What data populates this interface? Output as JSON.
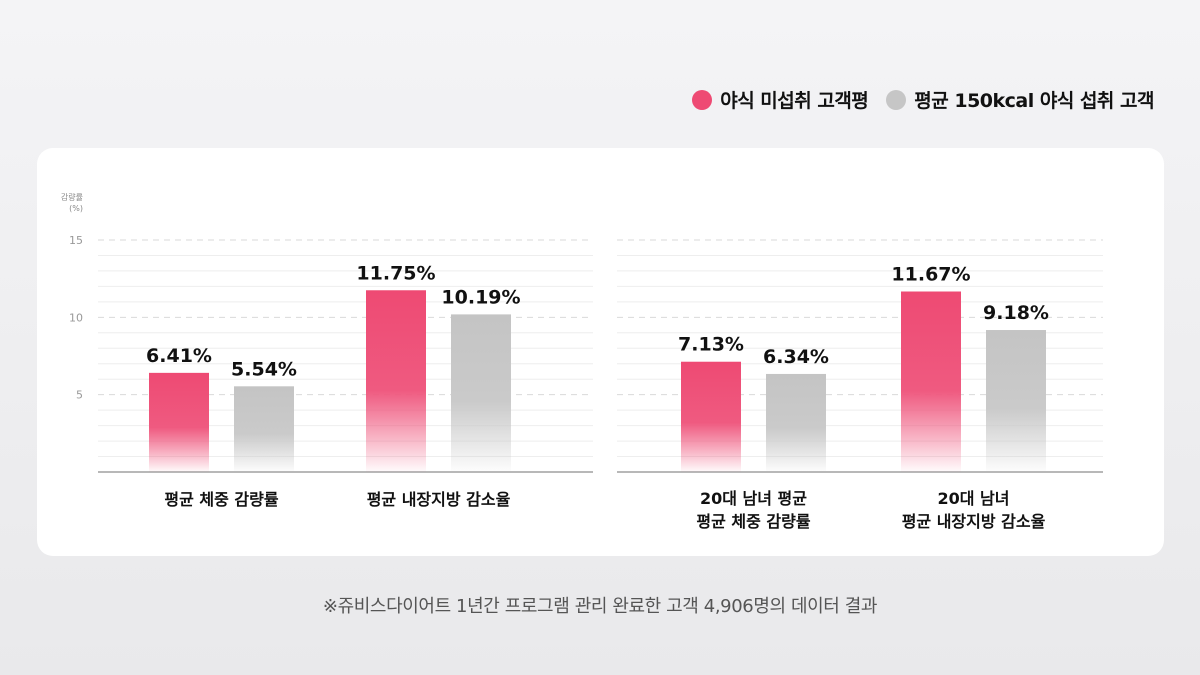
{
  "legend": [
    {
      "label": "야식 미섭취 고객평",
      "color": "#ee4a73"
    },
    {
      "label": "평균 150kcal 야식 섭취 고객",
      "color": "#c6c6c6"
    }
  ],
  "chart_data": {
    "type": "bar",
    "ylabel": "감량률\n(%)",
    "ylim": [
      0,
      15
    ],
    "yticks": [
      5,
      10,
      15
    ],
    "grid": true,
    "legend_position": "top-right",
    "series": [
      {
        "name": "야식 미섭취 고객평",
        "color": "#ee4a73"
      },
      {
        "name": "평균 150kcal 야식 섭취 고객",
        "color": "#c6c6c6"
      }
    ],
    "panels": [
      {
        "categories": [
          "평균 체중 감량률",
          "평균 내장지방 감소율"
        ],
        "values": [
          [
            6.41,
            5.54
          ],
          [
            11.75,
            10.19
          ]
        ],
        "value_labels": [
          [
            "6.41%",
            "5.54%"
          ],
          [
            "11.75%",
            "10.19%"
          ]
        ]
      },
      {
        "categories": [
          "20대 남녀 평균\n평균 체중 감량률",
          "20대 남녀\n평균 내장지방 감소율"
        ],
        "values": [
          [
            7.13,
            6.34
          ],
          [
            11.67,
            9.18
          ]
        ],
        "value_labels": [
          [
            "7.13%",
            "6.34%"
          ],
          [
            "11.67%",
            "9.18%"
          ]
        ]
      }
    ]
  },
  "footnote": "※쥬비스다이어트 1년간 프로그램 관리 완료한 고객 4,906명의 데이터 결과"
}
